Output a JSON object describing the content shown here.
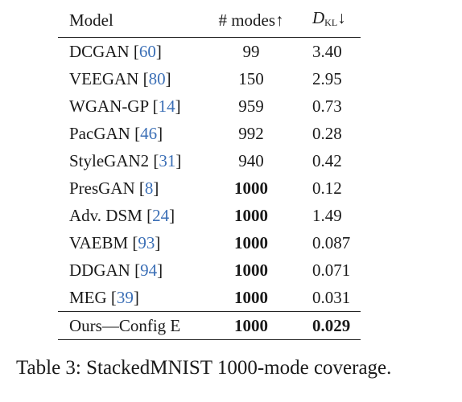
{
  "table": {
    "headers": {
      "model": "Model",
      "modes": "# modes↑",
      "kl_symbol": "D",
      "kl_sub": "KL",
      "kl_arrow": "↓"
    },
    "rows": [
      {
        "name": "DCGAN",
        "open": " [",
        "cite": "60",
        "close": "]",
        "modes": "99",
        "kl": "3.40",
        "modes_bold": false,
        "kl_bold": false
      },
      {
        "name": "VEEGAN",
        "open": " [",
        "cite": "80",
        "close": "]",
        "modes": "150",
        "kl": "2.95",
        "modes_bold": false,
        "kl_bold": false
      },
      {
        "name": "WGAN-GP",
        "open": " [",
        "cite": "14",
        "close": "]",
        "modes": "959",
        "kl": "0.73",
        "modes_bold": false,
        "kl_bold": false
      },
      {
        "name": "PacGAN",
        "open": " [",
        "cite": "46",
        "close": "]",
        "modes": "992",
        "kl": "0.28",
        "modes_bold": false,
        "kl_bold": false
      },
      {
        "name": "StyleGAN2",
        "open": " [",
        "cite": "31",
        "close": "]",
        "modes": "940",
        "kl": "0.42",
        "modes_bold": false,
        "kl_bold": false
      },
      {
        "name": "PresGAN",
        "open": " [",
        "cite": "8",
        "close": "]",
        "modes": "1000",
        "kl": "0.12",
        "modes_bold": true,
        "kl_bold": false
      },
      {
        "name": "Adv. DSM",
        "open": " [",
        "cite": "24",
        "close": "]",
        "modes": "1000",
        "kl": "1.49",
        "modes_bold": true,
        "kl_bold": false
      },
      {
        "name": "VAEBM",
        "open": " [",
        "cite": "93",
        "close": "]",
        "modes": "1000",
        "kl": "0.087",
        "modes_bold": true,
        "kl_bold": false
      },
      {
        "name": "DDGAN",
        "open": " [",
        "cite": "94",
        "close": "]",
        "modes": "1000",
        "kl": "0.071",
        "modes_bold": true,
        "kl_bold": false
      },
      {
        "name": "MEG",
        "open": " [",
        "cite": "39",
        "close": "]",
        "modes": "1000",
        "kl": "0.031",
        "modes_bold": true,
        "kl_bold": false
      }
    ],
    "ours": {
      "name": "Ours—Config E",
      "modes": "1000",
      "kl": "0.029",
      "modes_bold": true,
      "kl_bold": true
    }
  },
  "caption": "Table 3: StackedMNIST 1000-mode coverage.",
  "colors": {
    "citation": "#3b6fb6",
    "text": "#1a1a1a",
    "rule": "#222222"
  }
}
